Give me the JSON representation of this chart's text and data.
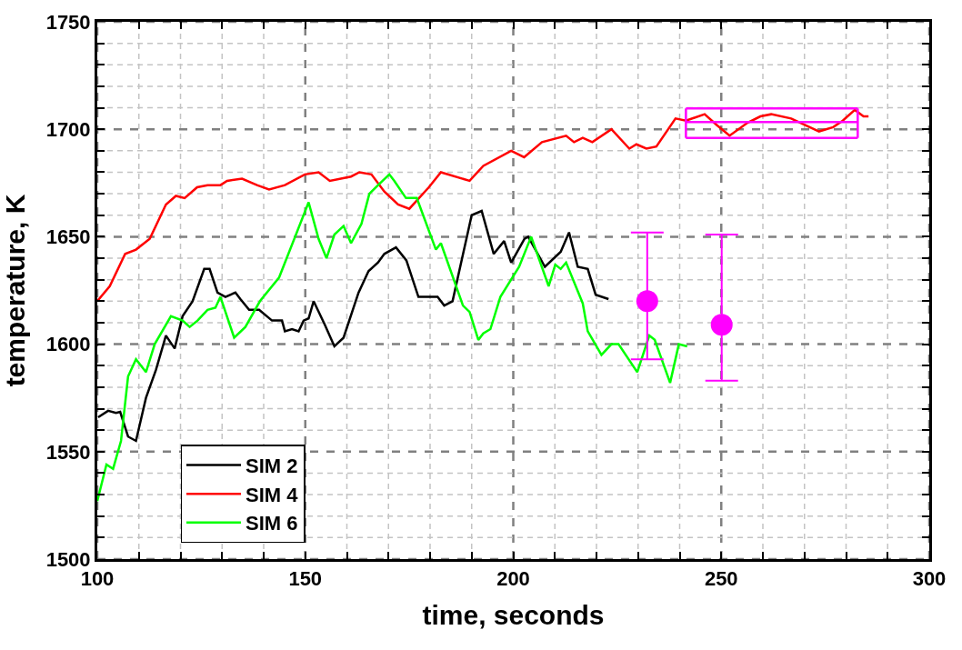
{
  "chart_data": {
    "type": "line",
    "xlabel": "time, seconds",
    "ylabel": "temperature, K",
    "xlim": [
      100,
      300
    ],
    "ylim": [
      1500,
      1750
    ],
    "xticks": [
      100,
      {
        "value": 110,
        "label": null
      },
      {
        "value": 120,
        "label": null
      },
      {
        "value": 130,
        "label": null
      },
      {
        "value": 140,
        "label": null
      },
      150,
      {
        "value": 160,
        "label": null
      },
      {
        "value": 170,
        "label": null
      },
      {
        "value": 180,
        "label": null
      },
      {
        "value": 190,
        "label": null
      },
      200,
      {
        "value": 210,
        "label": null
      },
      {
        "value": 220,
        "label": null
      },
      {
        "value": 230,
        "label": null
      },
      {
        "value": 240,
        "label": null
      },
      250,
      {
        "value": 260,
        "label": null
      },
      {
        "value": 270,
        "label": null
      },
      {
        "value": 280,
        "label": null
      },
      {
        "value": 290,
        "label": null
      },
      300
    ],
    "yticks": [
      1500,
      {
        "value": 1510,
        "label": null
      },
      {
        "value": 1520,
        "label": null
      },
      {
        "value": 1530,
        "label": null
      },
      {
        "value": 1540,
        "label": null
      },
      1550,
      {
        "value": 1560,
        "label": null
      },
      {
        "value": 1570,
        "label": null
      },
      {
        "value": 1580,
        "label": null
      },
      {
        "value": 1590,
        "label": null
      },
      1600,
      {
        "value": 1610,
        "label": null
      },
      {
        "value": 1620,
        "label": null
      },
      {
        "value": 1630,
        "label": null
      },
      {
        "value": 1640,
        "label": null
      },
      1650,
      {
        "value": 1660,
        "label": null
      },
      {
        "value": 1670,
        "label": null
      },
      {
        "value": 1680,
        "label": null
      },
      {
        "value": 1690,
        "label": null
      },
      1700,
      {
        "value": 1710,
        "label": null
      },
      {
        "value": 1720,
        "label": null
      },
      {
        "value": 1730,
        "label": null
      },
      {
        "value": 1740,
        "label": null
      },
      1750
    ],
    "grid": true,
    "legend": "bottom left",
    "marker": "none",
    "line_style": "solid",
    "series": [
      {
        "name": "SIM 2",
        "color": "#000000",
        "x": [
          100.2,
          102.6,
          104.5,
          105.5,
          107.4,
          109.3,
          111.7,
          114.1,
          116.5,
          118.6,
          120.5,
          122.9,
          125.7,
          127,
          128.9,
          130.8,
          133.2,
          134.4,
          136.5,
          138.9,
          142,
          144.4,
          145.1,
          146.8,
          148.4,
          149.6,
          150.8,
          152,
          154.7,
          157,
          159.2,
          162.8,
          165.2,
          167.5,
          169,
          171.8,
          174.3,
          177.2,
          181.8,
          183.4,
          185.4,
          190,
          192.4,
          195.3,
          197.8,
          199.5,
          202.7,
          203.6,
          207.6,
          211.4,
          213.4,
          215.5,
          217.9,
          219.8,
          222.9
        ],
        "values": [
          1566,
          1569,
          1568,
          1568.5,
          1557,
          1555,
          1575,
          1588,
          1604,
          1598,
          1613,
          1620,
          1635,
          1635,
          1624,
          1622,
          1624,
          1621,
          1616,
          1616,
          1611,
          1611,
          1606,
          1607,
          1606,
          1611,
          1612,
          1620,
          1609,
          1599,
          1603,
          1624,
          1634,
          1638,
          1642,
          1645,
          1639,
          1622,
          1622,
          1618,
          1620,
          1660,
          1662,
          1642,
          1648,
          1638,
          1649,
          1650,
          1636,
          1643,
          1652,
          1636,
          1635,
          1623,
          1621
        ]
      },
      {
        "name": "SIM 4",
        "color": "#ff0000",
        "x": [
          100,
          103,
          106.7,
          109.3,
          112.6,
          116.5,
          118.9,
          121,
          124,
          126.5,
          129.6,
          131.2,
          134.8,
          138.4,
          141.3,
          145.1,
          149.9,
          153.2,
          155.9,
          161,
          163,
          165.9,
          169,
          172.3,
          175,
          179.7,
          182.6,
          189.5,
          192.8,
          199.5,
          202.6,
          206.9,
          212.7,
          214.6,
          216.7,
          219,
          223.6,
          227.9,
          229.6,
          232,
          234.4,
          239,
          241.5,
          246,
          248.9,
          252,
          256.3,
          259.4,
          262,
          266.8,
          273.5,
          276.9,
          279.2,
          282.1,
          284.2,
          285.4
        ],
        "values": [
          1620,
          1627,
          1642,
          1644,
          1649,
          1665,
          1669,
          1668,
          1673,
          1674,
          1674,
          1676,
          1677,
          1674,
          1672,
          1674,
          1679,
          1680,
          1676,
          1678,
          1680,
          1679,
          1671,
          1665,
          1663,
          1673,
          1680,
          1676,
          1683,
          1690,
          1687,
          1694,
          1697,
          1694,
          1696,
          1694,
          1700,
          1691,
          1693,
          1691,
          1692,
          1705,
          1704,
          1707,
          1702,
          1697,
          1703,
          1706,
          1707,
          1705,
          1699,
          1701,
          1704,
          1709,
          1706,
          1706
        ]
      },
      {
        "name": "SIM 6",
        "color": "#00ff00",
        "x": [
          100,
          102.2,
          103.8,
          105.7,
          107.4,
          109.3,
          111.7,
          113.8,
          117.7,
          120.5,
          122.2,
          124.1,
          126.5,
          128.4,
          129.6,
          132.9,
          135.6,
          139.1,
          143.7,
          150.8,
          153.2,
          155.1,
          157,
          159.2,
          161,
          163.5,
          165.4,
          167.5,
          170.2,
          171.4,
          174.2,
          176.8,
          181.4,
          182.6,
          187.9,
          189.5,
          191.6,
          192.8,
          194.5,
          196.9,
          201.4,
          204.3,
          208.5,
          210.1,
          211.4,
          212.7,
          216.7,
          217.9,
          221.2,
          223.6,
          225.3,
          229.8,
          232.7,
          234,
          237.7,
          239.8,
          241.8
        ],
        "values": [
          1527,
          1544,
          1542,
          1555,
          1585,
          1593,
          1587,
          1600,
          1613,
          1611,
          1608,
          1611,
          1616,
          1617,
          1622,
          1603,
          1608,
          1620,
          1631,
          1666,
          1649,
          1640,
          1651,
          1655,
          1647,
          1656,
          1670,
          1674,
          1679,
          1676,
          1668,
          1668,
          1644,
          1647,
          1618,
          1615,
          1602,
          1605,
          1607,
          1622,
          1636,
          1650,
          1627,
          1637,
          1635,
          1638,
          1619,
          1606,
          1595,
          1600,
          1600,
          1587,
          1604,
          1602,
          1582,
          1600,
          1599
        ]
      },
      {
        "type": "scatter",
        "color": "#ff00ff",
        "marker": "circle",
        "x": [
          232.2,
          250.1
        ],
        "values": [
          1620,
          1609
        ],
        "errors": [
          [
            1593,
            1652
          ],
          [
            1583,
            1651
          ]
        ]
      },
      {
        "color": "#ff00ff",
        "x": [
          241.5,
          282.8
        ],
        "values": [
          1696,
          1696
        ]
      },
      {
        "color": "#ff00ff",
        "x": [
          241.5,
          282.8
        ],
        "values": [
          1703.4,
          1703.4
        ]
      },
      {
        "color": "#ff00ff",
        "x": [
          241.5,
          282.8
        ],
        "values": [
          1709.7,
          1709.7
        ]
      },
      {
        "color": "#ff00ff",
        "x": [
          241.5,
          241.5
        ],
        "values": [
          1696,
          1709.7
        ]
      },
      {
        "color": "#ff00ff",
        "x": [
          282.8,
          282.8
        ],
        "values": [
          1696,
          1709.7
        ]
      }
    ]
  }
}
